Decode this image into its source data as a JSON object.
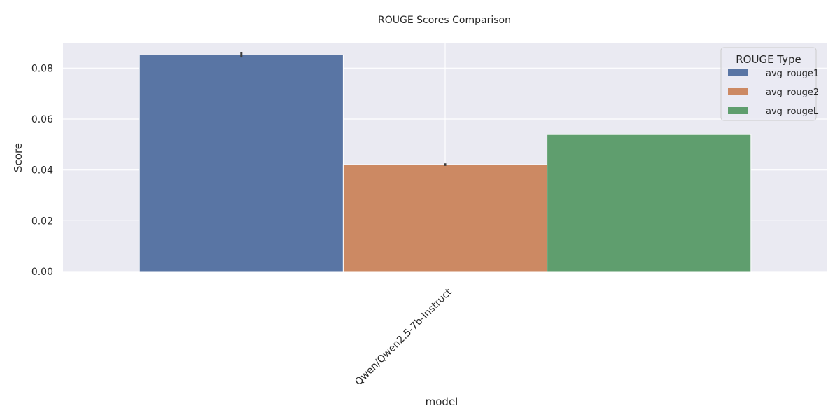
{
  "chart_data": {
    "type": "bar",
    "title": "ROUGE Scores Comparison",
    "xlabel": "model",
    "ylabel": "Score",
    "categories": [
      "Qwen/Qwen2.5-7b-Instruct"
    ],
    "series": [
      {
        "name": "avg_rouge1",
        "values": [
          0.0852
        ],
        "error": [
          0.001
        ],
        "color": "#5975a4"
      },
      {
        "name": "avg_rouge2",
        "values": [
          0.0421
        ],
        "error": [
          0.0005
        ],
        "color": "#cc8963"
      },
      {
        "name": "avg_rougeL",
        "values": [
          0.0539
        ],
        "error": [
          0
        ],
        "color": "#5f9e6e"
      }
    ],
    "ylim": [
      0,
      0.09
    ],
    "yticks": [
      "0.00",
      "0.02",
      "0.04",
      "0.06",
      "0.08"
    ],
    "grid": true,
    "legend": {
      "title": "ROUGE Type",
      "placement": "top-right"
    },
    "background_color": "#eaeaf2"
  }
}
